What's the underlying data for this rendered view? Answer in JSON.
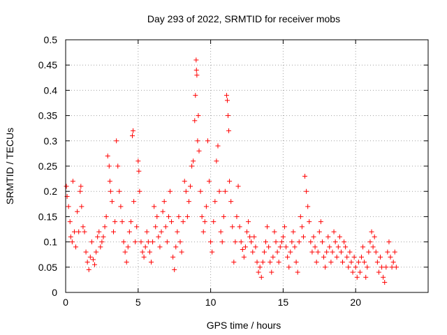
{
  "chart_data": {
    "type": "scatter",
    "title": "Day 293 of 2022, SRMTID for receiver mobs",
    "xlabel": "GPS time / hours",
    "ylabel": "SRMTID / TECUs",
    "xlim": [
      0,
      25
    ],
    "ylim": [
      0,
      0.5
    ],
    "xticks": [
      0,
      5,
      10,
      15,
      20
    ],
    "yticks": [
      0,
      0.05,
      0.1,
      0.15,
      0.2,
      0.25,
      0.3,
      0.35,
      0.4,
      0.45,
      0.5
    ],
    "xtick_labels": [
      "0",
      "5",
      "10",
      "15",
      "20"
    ],
    "ytick_labels": [
      "0",
      "0.05",
      "0.1",
      "0.15",
      "0.2",
      "0.25",
      "0.3",
      "0.35",
      "0.4",
      "0.45",
      "0.5"
    ],
    "grid": true,
    "marker": "+",
    "marker_color": "#ff0000",
    "x_range_of_data": [
      0,
      22.9
    ],
    "series": [
      {
        "name": "SRMTID",
        "points": [
          [
            0.05,
            0.21
          ],
          [
            0.1,
            0.19
          ],
          [
            0.2,
            0.17
          ],
          [
            0.3,
            0.14
          ],
          [
            0.35,
            0.11
          ],
          [
            0.45,
            0.1
          ],
          [
            0.5,
            0.22
          ],
          [
            0.6,
            0.12
          ],
          [
            0.7,
            0.09
          ],
          [
            0.8,
            0.16
          ],
          [
            0.9,
            0.12
          ],
          [
            1.0,
            0.2
          ],
          [
            1.05,
            0.21
          ],
          [
            1.1,
            0.17
          ],
          [
            1.2,
            0.13
          ],
          [
            1.3,
            0.12
          ],
          [
            1.4,
            0.08
          ],
          [
            1.5,
            0.06
          ],
          [
            1.6,
            0.045
          ],
          [
            1.7,
            0.07
          ],
          [
            1.8,
            0.1
          ],
          [
            1.9,
            0.065
          ],
          [
            2.0,
            0.055
          ],
          [
            2.1,
            0.08
          ],
          [
            2.2,
            0.11
          ],
          [
            2.3,
            0.12
          ],
          [
            2.4,
            0.09
          ],
          [
            2.5,
            0.1
          ],
          [
            2.6,
            0.11
          ],
          [
            2.7,
            0.13
          ],
          [
            2.8,
            0.15
          ],
          [
            2.9,
            0.27
          ],
          [
            3.0,
            0.25
          ],
          [
            3.05,
            0.22
          ],
          [
            3.1,
            0.2
          ],
          [
            3.2,
            0.18
          ],
          [
            3.3,
            0.12
          ],
          [
            3.4,
            0.14
          ],
          [
            3.5,
            0.3
          ],
          [
            3.6,
            0.25
          ],
          [
            3.7,
            0.2
          ],
          [
            3.8,
            0.17
          ],
          [
            3.9,
            0.14
          ],
          [
            4.0,
            0.1
          ],
          [
            4.1,
            0.08
          ],
          [
            4.2,
            0.06
          ],
          [
            4.3,
            0.09
          ],
          [
            4.4,
            0.12
          ],
          [
            4.5,
            0.14
          ],
          [
            4.6,
            0.31
          ],
          [
            4.65,
            0.32
          ],
          [
            4.7,
            0.18
          ],
          [
            4.8,
            0.1
          ],
          [
            4.9,
            0.13
          ],
          [
            5.0,
            0.26
          ],
          [
            5.05,
            0.24
          ],
          [
            5.1,
            0.2
          ],
          [
            5.2,
            0.1
          ],
          [
            5.3,
            0.08
          ],
          [
            5.4,
            0.07
          ],
          [
            5.5,
            0.09
          ],
          [
            5.6,
            0.12
          ],
          [
            5.7,
            0.1
          ],
          [
            5.8,
            0.08
          ],
          [
            5.9,
            0.06
          ],
          [
            6.0,
            0.1
          ],
          [
            6.1,
            0.17
          ],
          [
            6.2,
            0.13
          ],
          [
            6.3,
            0.15
          ],
          [
            6.4,
            0.11
          ],
          [
            6.5,
            0.09
          ],
          [
            6.6,
            0.12
          ],
          [
            6.7,
            0.16
          ],
          [
            6.8,
            0.18
          ],
          [
            6.9,
            0.13
          ],
          [
            7.0,
            0.1
          ],
          [
            7.1,
            0.15
          ],
          [
            7.2,
            0.2
          ],
          [
            7.3,
            0.14
          ],
          [
            7.4,
            0.07
          ],
          [
            7.5,
            0.045
          ],
          [
            7.6,
            0.09
          ],
          [
            7.7,
            0.12
          ],
          [
            7.8,
            0.15
          ],
          [
            7.9,
            0.1
          ],
          [
            8.0,
            0.08
          ],
          [
            8.1,
            0.14
          ],
          [
            8.2,
            0.22
          ],
          [
            8.3,
            0.2
          ],
          [
            8.4,
            0.15
          ],
          [
            8.5,
            0.18
          ],
          [
            8.6,
            0.21
          ],
          [
            8.7,
            0.25
          ],
          [
            8.8,
            0.26
          ],
          [
            8.9,
            0.34
          ],
          [
            8.95,
            0.39
          ],
          [
            9.0,
            0.46
          ],
          [
            9.02,
            0.44
          ],
          [
            9.05,
            0.43
          ],
          [
            9.1,
            0.3
          ],
          [
            9.15,
            0.35
          ],
          [
            9.2,
            0.28
          ],
          [
            9.3,
            0.2
          ],
          [
            9.4,
            0.15
          ],
          [
            9.5,
            0.12
          ],
          [
            9.6,
            0.14
          ],
          [
            9.7,
            0.17
          ],
          [
            9.8,
            0.3
          ],
          [
            9.9,
            0.22
          ],
          [
            10.0,
            0.1
          ],
          [
            10.1,
            0.08
          ],
          [
            10.2,
            0.14
          ],
          [
            10.3,
            0.18
          ],
          [
            10.4,
            0.26
          ],
          [
            10.5,
            0.29
          ],
          [
            10.6,
            0.2
          ],
          [
            10.7,
            0.12
          ],
          [
            10.8,
            0.1
          ],
          [
            10.9,
            0.15
          ],
          [
            11.0,
            0.2
          ],
          [
            11.1,
            0.39
          ],
          [
            11.15,
            0.38
          ],
          [
            11.2,
            0.35
          ],
          [
            11.25,
            0.32
          ],
          [
            11.3,
            0.22
          ],
          [
            11.4,
            0.18
          ],
          [
            11.5,
            0.13
          ],
          [
            11.6,
            0.06
          ],
          [
            11.7,
            0.1
          ],
          [
            11.8,
            0.15
          ],
          [
            11.9,
            0.21
          ],
          [
            12.0,
            0.13
          ],
          [
            12.1,
            0.1
          ],
          [
            12.2,
            0.085
          ],
          [
            12.3,
            0.07
          ],
          [
            12.4,
            0.09
          ],
          [
            12.5,
            0.12
          ],
          [
            12.6,
            0.14
          ],
          [
            12.7,
            0.11
          ],
          [
            12.8,
            0.1
          ],
          [
            12.9,
            0.08
          ],
          [
            13.0,
            0.11
          ],
          [
            13.1,
            0.09
          ],
          [
            13.2,
            0.06
          ],
          [
            13.3,
            0.04
          ],
          [
            13.4,
            0.05
          ],
          [
            13.5,
            0.03
          ],
          [
            13.6,
            0.06
          ],
          [
            13.7,
            0.08
          ],
          [
            13.8,
            0.1
          ],
          [
            13.9,
            0.13
          ],
          [
            14.0,
            0.09
          ],
          [
            14.1,
            0.06
          ],
          [
            14.2,
            0.04
          ],
          [
            14.3,
            0.07
          ],
          [
            14.4,
            0.12
          ],
          [
            14.5,
            0.1
          ],
          [
            14.6,
            0.08
          ],
          [
            14.7,
            0.06
          ],
          [
            14.8,
            0.09
          ],
          [
            14.9,
            0.1
          ],
          [
            15.0,
            0.11
          ],
          [
            15.1,
            0.13
          ],
          [
            15.2,
            0.09
          ],
          [
            15.3,
            0.07
          ],
          [
            15.4,
            0.05
          ],
          [
            15.5,
            0.08
          ],
          [
            15.6,
            0.1
          ],
          [
            15.7,
            0.12
          ],
          [
            15.8,
            0.09
          ],
          [
            15.9,
            0.06
          ],
          [
            16.0,
            0.04
          ],
          [
            16.1,
            0.1
          ],
          [
            16.2,
            0.15
          ],
          [
            16.3,
            0.13
          ],
          [
            16.4,
            0.11
          ],
          [
            16.5,
            0.23
          ],
          [
            16.6,
            0.2
          ],
          [
            16.7,
            0.17
          ],
          [
            16.8,
            0.14
          ],
          [
            16.9,
            0.1
          ],
          [
            17.0,
            0.08
          ],
          [
            17.1,
            0.11
          ],
          [
            17.2,
            0.09
          ],
          [
            17.3,
            0.06
          ],
          [
            17.4,
            0.08
          ],
          [
            17.5,
            0.12
          ],
          [
            17.6,
            0.14
          ],
          [
            17.7,
            0.1
          ],
          [
            17.8,
            0.07
          ],
          [
            17.9,
            0.05
          ],
          [
            18.0,
            0.08
          ],
          [
            18.1,
            0.11
          ],
          [
            18.2,
            0.09
          ],
          [
            18.3,
            0.06
          ],
          [
            18.4,
            0.08
          ],
          [
            18.5,
            0.12
          ],
          [
            18.6,
            0.1
          ],
          [
            18.7,
            0.07
          ],
          [
            18.8,
            0.09
          ],
          [
            18.9,
            0.11
          ],
          [
            19.0,
            0.08
          ],
          [
            19.1,
            0.06
          ],
          [
            19.2,
            0.1
          ],
          [
            19.3,
            0.09
          ],
          [
            19.4,
            0.07
          ],
          [
            19.5,
            0.05
          ],
          [
            19.6,
            0.08
          ],
          [
            19.7,
            0.06
          ],
          [
            19.8,
            0.04
          ],
          [
            19.9,
            0.07
          ],
          [
            20.0,
            0.05
          ],
          [
            20.1,
            0.03
          ],
          [
            20.2,
            0.06
          ],
          [
            20.3,
            0.04
          ],
          [
            20.4,
            0.07
          ],
          [
            20.5,
            0.09
          ],
          [
            20.6,
            0.06
          ],
          [
            20.7,
            0.03
          ],
          [
            20.8,
            0.05
          ],
          [
            20.9,
            0.08
          ],
          [
            21.0,
            0.1
          ],
          [
            21.1,
            0.12
          ],
          [
            21.2,
            0.09
          ],
          [
            21.3,
            0.11
          ],
          [
            21.4,
            0.08
          ],
          [
            21.5,
            0.06
          ],
          [
            21.6,
            0.04
          ],
          [
            21.7,
            0.07
          ],
          [
            21.8,
            0.05
          ],
          [
            21.9,
            0.03
          ],
          [
            22.0,
            0.02
          ],
          [
            22.1,
            0.05
          ],
          [
            22.2,
            0.08
          ],
          [
            22.3,
            0.1
          ],
          [
            22.4,
            0.07
          ],
          [
            22.5,
            0.05
          ],
          [
            22.6,
            0.06
          ],
          [
            22.7,
            0.08
          ],
          [
            22.8,
            0.05
          ]
        ]
      }
    ]
  }
}
